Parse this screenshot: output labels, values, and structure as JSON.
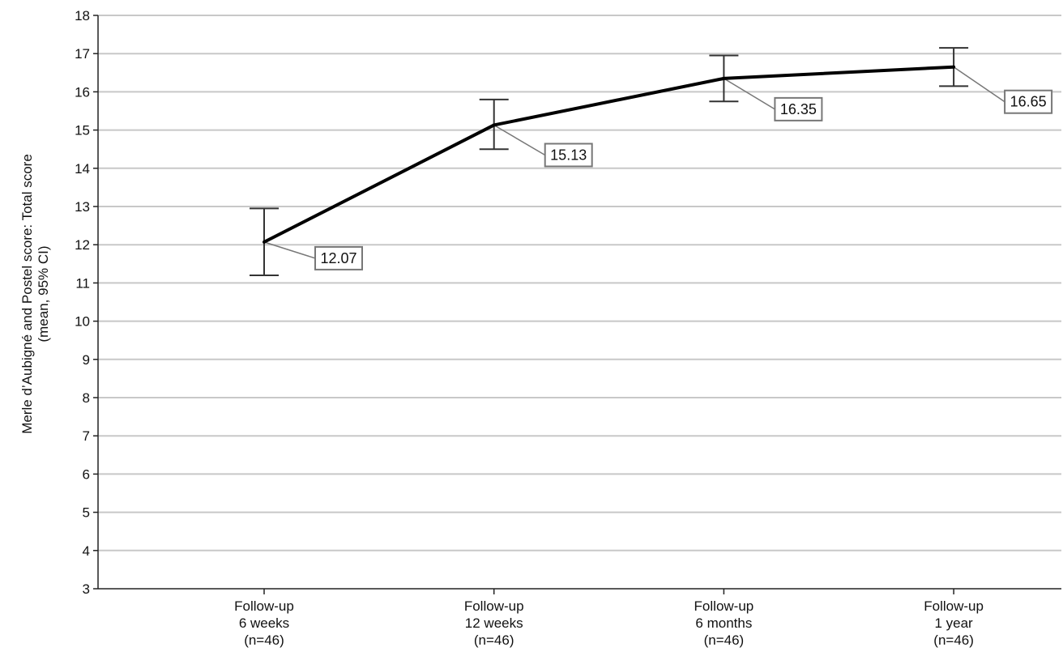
{
  "chart_data": {
    "type": "line",
    "title": "",
    "ylabel": [
      "Merle d’Aubigné and Postel score: Total score",
      "(mean, 95% CI)"
    ],
    "xlabel": "",
    "ylim": [
      3,
      18
    ],
    "yticks": [
      3,
      4,
      5,
      6,
      7,
      8,
      9,
      10,
      11,
      12,
      13,
      14,
      15,
      16,
      17,
      18
    ],
    "grid": true,
    "categories": [
      [
        "Follow-up",
        "6 weeks",
        "(n=46)"
      ],
      [
        "Follow-up",
        "12 weeks",
        "(n=46)"
      ],
      [
        "Follow-up",
        "6 months",
        "(n=46)"
      ],
      [
        "Follow-up",
        "1 year",
        "(n=46)"
      ]
    ],
    "series": [
      {
        "values": [
          12.07,
          15.13,
          16.35,
          16.65
        ],
        "ci_lower": [
          11.2,
          14.5,
          15.75,
          16.15
        ],
        "ci_upper": [
          12.95,
          15.8,
          16.95,
          17.15
        ],
        "data_labels": [
          "12.07",
          "15.13",
          "16.35",
          "16.65"
        ]
      }
    ],
    "colors": {
      "line": "#000000",
      "grid": "#c8c8c8",
      "errorbar": "#333333",
      "label_border": "#777777",
      "leader": "#777777"
    }
  }
}
